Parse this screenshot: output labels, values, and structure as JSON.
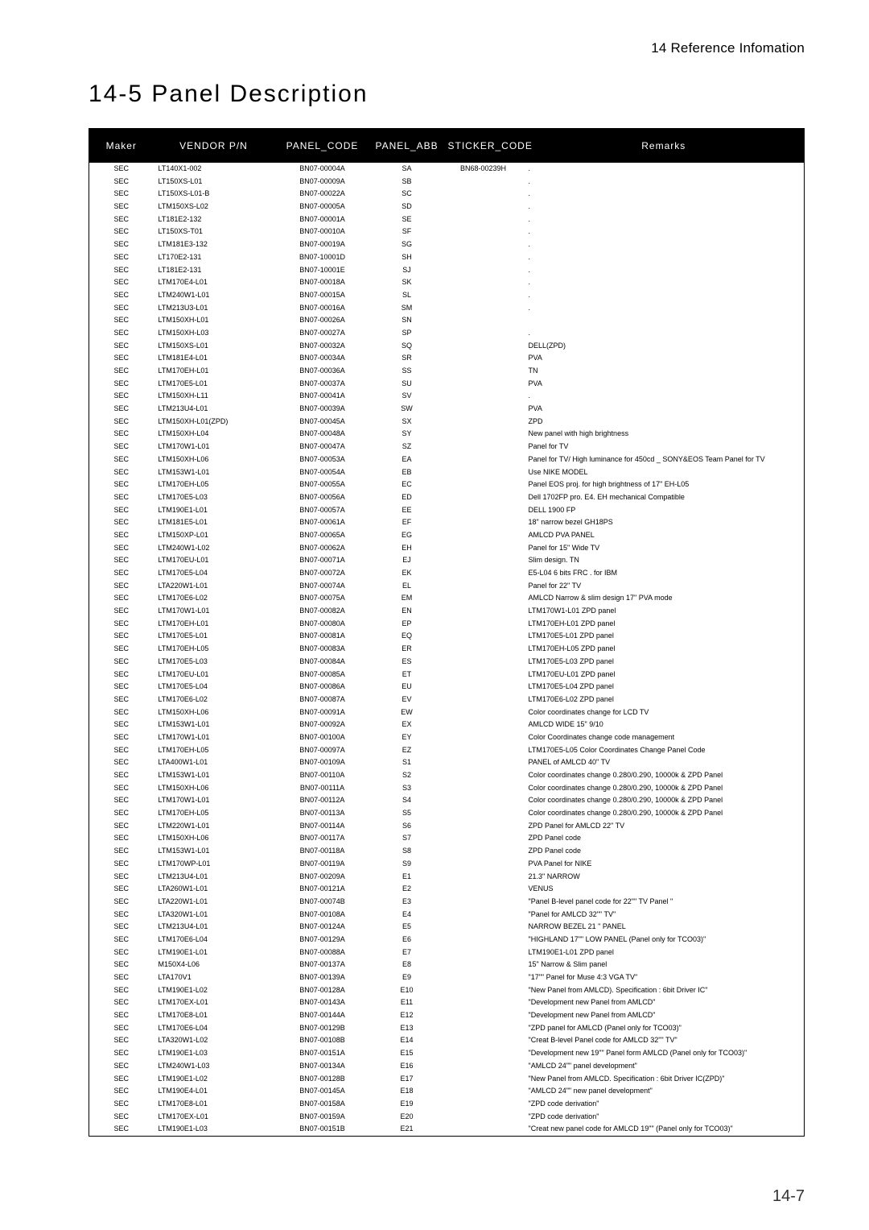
{
  "header": {
    "reference": "14 Reference Infomation",
    "title": "14-5 Panel Description"
  },
  "footer": {
    "page": "14-7"
  },
  "table": {
    "columns": [
      "Maker",
      "VENDOR P/N",
      "PANEL_CODE",
      "PANEL_ABB",
      "STICKER_CODE",
      "Remarks"
    ],
    "align": [
      "c",
      "l",
      "c",
      "c",
      "c",
      "l"
    ],
    "rows": [
      [
        "SEC",
        "LT140X1-002",
        "BN07-00004A",
        "SA",
        "BN68-00239H",
        "."
      ],
      [
        "SEC",
        "LT150XS-L01",
        "BN07-00009A",
        "SB",
        "",
        "."
      ],
      [
        "SEC",
        "LT150XS-L01-B",
        "BN07-00022A",
        "SC",
        "",
        "."
      ],
      [
        "SEC",
        "LTM150XS-L02",
        "BN07-00005A",
        "SD",
        "",
        "."
      ],
      [
        "SEC",
        "LT181E2-132",
        "BN07-00001A",
        "SE",
        "",
        "."
      ],
      [
        "SEC",
        "LT150XS-T01",
        "BN07-00010A",
        "SF",
        "",
        "."
      ],
      [
        "SEC",
        "LTM181E3-132",
        "BN07-00019A",
        "SG",
        "",
        "."
      ],
      [
        "SEC",
        "LT170E2-131",
        "BN07-10001D",
        "SH",
        "",
        "."
      ],
      [
        "SEC",
        "LT181E2-131",
        "BN07-10001E",
        "SJ",
        "",
        "."
      ],
      [
        "SEC",
        "LTM170E4-L01",
        "BN07-00018A",
        "SK",
        "",
        "."
      ],
      [
        "SEC",
        "LTM240W1-L01",
        "BN07-00015A",
        "SL",
        "",
        "."
      ],
      [
        "SEC",
        "LTM213U3-L01",
        "BN07-00016A",
        "SM",
        "",
        "."
      ],
      [
        "SEC",
        "LTM150XH-L01",
        "BN07-00026A",
        "SN",
        "",
        ""
      ],
      [
        "SEC",
        "LTM150XH-L03",
        "BN07-00027A",
        "SP",
        "",
        "."
      ],
      [
        "SEC",
        "LTM150XS-L01",
        "BN07-00032A",
        "SQ",
        "",
        "DELL(ZPD)"
      ],
      [
        "SEC",
        "LTM181E4-L01",
        "BN07-00034A",
        "SR",
        "",
        "PVA"
      ],
      [
        "SEC",
        "LTM170EH-L01",
        "BN07-00036A",
        "SS",
        "",
        "TN"
      ],
      [
        "SEC",
        "LTM170E5-L01",
        "BN07-00037A",
        "SU",
        "",
        "PVA"
      ],
      [
        "SEC",
        "LTM150XH-L11",
        "BN07-00041A",
        "SV",
        "",
        "."
      ],
      [
        "SEC",
        "LTM213U4-L01",
        "BN07-00039A",
        "SW",
        "",
        "PVA"
      ],
      [
        "SEC",
        "LTM150XH-L01(ZPD)",
        "BN07-00045A",
        "SX",
        "",
        "ZPD"
      ],
      [
        "SEC",
        "LTM150XH-L04",
        "BN07-00048A",
        "SY",
        "",
        "New panel with high brightness"
      ],
      [
        "SEC",
        "LTM170W1-L01",
        "BN07-00047A",
        "SZ",
        "",
        "Panel for TV"
      ],
      [
        "SEC",
        "LTM150XH-L06",
        "BN07-00053A",
        "EA",
        "",
        "Panel for TV/ High luminance for 450cd _ SONY&EOS Team Panel for TV"
      ],
      [
        "SEC",
        "LTM153W1-L01",
        "BN07-00054A",
        "EB",
        "",
        "Use NIKE MODEL"
      ],
      [
        "SEC",
        "LTM170EH-L05",
        "BN07-00055A",
        "EC",
        "",
        "Panel EOS proj. for high brightness of 17\" EH-L05"
      ],
      [
        "SEC",
        "LTM170E5-L03",
        "BN07-00056A",
        "ED",
        "",
        "Dell 1702FP pro. E4. EH mechanical Compatible"
      ],
      [
        "SEC",
        "LTM190E1-L01",
        "BN07-00057A",
        "EE",
        "",
        "DELL 1900 FP"
      ],
      [
        "SEC",
        "LTM181E5-L01",
        "BN07-00061A",
        "EF",
        "",
        "18\" narrow bezel GH18PS"
      ],
      [
        "SEC",
        "LTM150XP-L01",
        "BN07-00065A",
        "EG",
        "",
        "AMLCD PVA PANEL"
      ],
      [
        "SEC",
        "LTM240W1-L02",
        "BN07-00062A",
        "EH",
        "",
        "Panel for 15\" Wide TV"
      ],
      [
        "SEC",
        "LTM170EU-L01",
        "BN07-00071A",
        "EJ",
        "",
        "Slim design. TN"
      ],
      [
        "SEC",
        "LTM170E5-L04",
        "BN07-00072A",
        "EK",
        "",
        "E5-L04 6 bits FRC . for IBM"
      ],
      [
        "SEC",
        "LTA220W1-L01",
        "BN07-00074A",
        "EL",
        "",
        "Panel for 22\" TV"
      ],
      [
        "SEC",
        "LTM170E6-L02",
        "BN07-00075A",
        "EM",
        "",
        "AMLCD Narrow & slim design 17\"  PVA mode"
      ],
      [
        "SEC",
        "LTM170W1-L01",
        "BN07-00082A",
        "EN",
        "",
        "LTM170W1-L01  ZPD panel"
      ],
      [
        "SEC",
        "LTM170EH-L01",
        "BN07-00080A",
        "EP",
        "",
        "LTM170EH-L01 ZPD panel"
      ],
      [
        "SEC",
        "LTM170E5-L01",
        "BN07-00081A",
        "EQ",
        "",
        "LTM170E5-L01 ZPD panel"
      ],
      [
        "SEC",
        "LTM170EH-L05",
        "BN07-00083A",
        "ER",
        "",
        "LTM170EH-L05 ZPD panel"
      ],
      [
        "SEC",
        "LTM170E5-L03",
        "BN07-00084A",
        "ES",
        "",
        "LTM170E5-L03 ZPD panel"
      ],
      [
        "SEC",
        "LTM170EU-L01",
        "BN07-00085A",
        "ET",
        "",
        "LTM170EU-L01 ZPD panel"
      ],
      [
        "SEC",
        "LTM170E5-L04",
        "BN07-00086A",
        "EU",
        "",
        "LTM170E5-L04 ZPD panel"
      ],
      [
        "SEC",
        "LTM170E6-L02",
        "BN07-00087A",
        "EV",
        "",
        "LTM170E6-L02 ZPD panel"
      ],
      [
        "SEC",
        "LTM150XH-L06",
        "BN07-00091A",
        "EW",
        "",
        "Color coordinates change for LCD TV"
      ],
      [
        "SEC",
        "LTM153W1-L01",
        "BN07-00092A",
        "EX",
        "",
        "AMLCD WIDE 15\" 9/10"
      ],
      [
        "SEC",
        "LTM170W1-L01",
        "BN07-00100A",
        "EY",
        "",
        "Color Coordinates change code management"
      ],
      [
        "SEC",
        "LTM170EH-L05",
        "BN07-00097A",
        "EZ",
        "",
        "LTM170E5-L05 Color Coordinates Change Panel Code"
      ],
      [
        "SEC",
        "LTA400W1-L01",
        "BN07-00109A",
        "S1",
        "",
        "PANEL of AMLCD 40\" TV"
      ],
      [
        "SEC",
        "LTM153W1-L01",
        "BN07-00110A",
        "S2",
        "",
        "Color coordinates change 0.280/0.290, 10000k & ZPD Panel"
      ],
      [
        "SEC",
        "LTM150XH-L06",
        "BN07-00111A",
        "S3",
        "",
        "Color coordinates change 0.280/0.290, 10000k & ZPD Panel"
      ],
      [
        "SEC",
        "LTM170W1-L01",
        "BN07-00112A",
        "S4",
        "",
        "Color coordinates change 0.280/0.290, 10000k & ZPD Panel"
      ],
      [
        "SEC",
        "LTM170EH-L05",
        "BN07-00113A",
        "S5",
        "",
        "Color coordinates change 0.280/0.290, 10000k & ZPD Panel"
      ],
      [
        "SEC",
        "LTM220W1-L01",
        "BN07-00114A",
        "S6",
        "",
        "ZPD Panel for AMLCD 22\" TV"
      ],
      [
        "SEC",
        "LTM150XH-L06",
        "BN07-00117A",
        "S7",
        "",
        "ZPD Panel code"
      ],
      [
        "SEC",
        "LTM153W1-L01",
        "BN07-00118A",
        "S8",
        "",
        "ZPD Panel code"
      ],
      [
        "SEC",
        "LTM170WP-L01",
        "BN07-00119A",
        "S9",
        "",
        "PVA Panel for NIKE"
      ],
      [
        "SEC",
        "LTM213U4-L01",
        "BN07-00209A",
        "E1",
        "",
        "21.3\" NARROW"
      ],
      [
        "SEC",
        "LTA260W1-L01",
        "BN07-00121A",
        "E2",
        "",
        "VENUS"
      ],
      [
        "SEC",
        "LTA220W1-L01",
        "BN07-00074B",
        "E3",
        "",
        "\"Panel B-level panel code for 22\"\" TV Panel \""
      ],
      [
        "SEC",
        "LTA320W1-L01",
        "BN07-00108A",
        "E4",
        "",
        "\"Panel for AMLCD 32\"\" TV\""
      ],
      [
        "SEC",
        "LTM213U4-L01",
        "BN07-00124A",
        "E5",
        "",
        "NARROW BEZEL 21 \" PANEL"
      ],
      [
        "SEC",
        "LTM170E6-L04",
        "BN07-00129A",
        "E6",
        "",
        "\"HIGHLAND 17\"\" LOW PANEL (Panel only for TCO03)\""
      ],
      [
        "SEC",
        "LTM190E1-L01",
        "BN07-00088A",
        "E7",
        "",
        "LTM190E1-L01 ZPD  panel"
      ],
      [
        "SEC",
        "M150X4-L06",
        "BN07-00137A",
        "E8",
        "",
        "15\" Narrow & Slim panel"
      ],
      [
        "SEC",
        "LTA170V1",
        "BN07-00139A",
        "E9",
        "",
        "\"17\"\" Panel for Muse 4:3 VGA TV\""
      ],
      [
        "SEC",
        "LTM190E1-L02",
        "BN07-00128A",
        "E10",
        "",
        "\"New Panel from AMLCD). Specification : 6bit Driver IC\""
      ],
      [
        "SEC",
        "LTM170EX-L01",
        "BN07-00143A",
        "E11",
        "",
        "\"Development new Panel from AMLCD\""
      ],
      [
        "SEC",
        "LTM170E8-L01",
        "BN07-00144A",
        "E12",
        "",
        "\"Development new Panel from AMLCD\""
      ],
      [
        "SEC",
        "LTM170E6-L04",
        "BN07-00129B",
        "E13",
        "",
        "\"ZPD panel for AMLCD (Panel only for TCO03)\""
      ],
      [
        "SEC",
        "LTA320W1-L02",
        "BN07-00108B",
        "E14",
        "",
        "\"Creat B-level Panel code for AMLCD 32\"\" TV\""
      ],
      [
        "SEC",
        "LTM190E1-L03",
        "BN07-00151A",
        "E15",
        "",
        "\"Development new 19\"\" Panel form AMLCD (Panel only for TCO03)\""
      ],
      [
        "SEC",
        "LTM240W1-L03",
        "BN07-00134A",
        "E16",
        "",
        "\"AMLCD 24\"\" panel development\""
      ],
      [
        "SEC",
        "LTM190E1-L02",
        "BN07-00128B",
        "E17",
        "",
        "\"New Panel from AMLCD. Specification : 6bit Driver IC(ZPD)\""
      ],
      [
        "SEC",
        "LTM190E4-L01",
        "BN07-00145A",
        "E18",
        "",
        "\"AMLCD 24\"\" new panel development\""
      ],
      [
        "SEC",
        "LTM170E8-L01",
        "BN07-00158A",
        "E19",
        "",
        "\"ZPD code derivation\""
      ],
      [
        "SEC",
        "LTM170EX-L01",
        "BN07-00159A",
        "E20",
        "",
        "\"ZPD code derivation\""
      ],
      [
        "SEC",
        "LTM190E1-L03",
        "BN07-00151B",
        "E21",
        "",
        "\"Creat new panel code for AMLCD 19\"\" (Panel only for TCO03)\""
      ]
    ]
  }
}
